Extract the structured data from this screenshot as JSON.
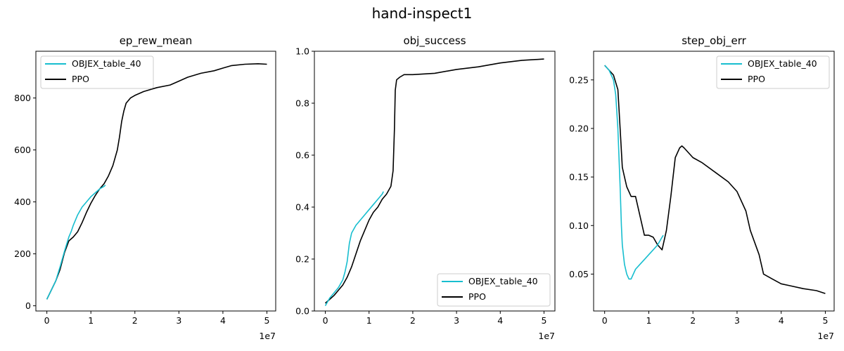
{
  "figure": {
    "title": "hand-inspect1",
    "x_multiplier": "1e7",
    "colors": {
      "OBJEX_table_40": "#17becf",
      "PPO": "#000000"
    }
  },
  "chart_data": [
    {
      "type": "line",
      "title": "ep_rew_mean",
      "xlabel": "",
      "ylabel": "",
      "x_exponent": "1e7",
      "xlim": [
        -0.25,
        5.2
      ],
      "ylim": [
        -20,
        980
      ],
      "xticks": [
        0,
        1,
        2,
        3,
        4,
        5
      ],
      "yticks": [
        0,
        200,
        400,
        600,
        800
      ],
      "grid": false,
      "legend": "upper left",
      "series": [
        {
          "name": "OBJEX_table_40",
          "color": "#17becf",
          "x": [
            0,
            0.1,
            0.2,
            0.3,
            0.4,
            0.5,
            0.55,
            0.6,
            0.7,
            0.8,
            0.9,
            1.0,
            1.1,
            1.2,
            1.3,
            1.33
          ],
          "y": [
            25,
            60,
            95,
            150,
            210,
            265,
            285,
            310,
            350,
            380,
            400,
            420,
            435,
            450,
            460,
            465
          ]
        },
        {
          "name": "PPO",
          "color": "#000000",
          "x": [
            0,
            0.1,
            0.2,
            0.3,
            0.4,
            0.5,
            0.6,
            0.7,
            0.8,
            0.9,
            1.0,
            1.1,
            1.2,
            1.3,
            1.4,
            1.5,
            1.6,
            1.65,
            1.7,
            1.75,
            1.8,
            1.9,
            2.0,
            2.2,
            2.5,
            2.8,
            3.0,
            3.2,
            3.5,
            3.8,
            4.0,
            4.2,
            4.5,
            4.8,
            5.0
          ],
          "y": [
            25,
            60,
            95,
            140,
            205,
            250,
            265,
            285,
            320,
            360,
            395,
            425,
            450,
            470,
            500,
            540,
            600,
            650,
            710,
            750,
            780,
            800,
            810,
            825,
            840,
            850,
            865,
            880,
            895,
            905,
            915,
            925,
            930,
            932,
            930
          ]
        }
      ]
    },
    {
      "type": "line",
      "title": "obj_success",
      "xlabel": "",
      "ylabel": "",
      "x_exponent": "1e7",
      "xlim": [
        -0.25,
        5.25
      ],
      "ylim": [
        0,
        1.0
      ],
      "xticks": [
        0,
        1,
        2,
        3,
        4,
        5
      ],
      "yticks": [
        0.0,
        0.2,
        0.4,
        0.6,
        0.8,
        1.0
      ],
      "grid": false,
      "legend": "lower right",
      "series": [
        {
          "name": "OBJEX_table_40",
          "color": "#17becf",
          "x": [
            0,
            0.1,
            0.2,
            0.3,
            0.4,
            0.45,
            0.5,
            0.55,
            0.6,
            0.7,
            0.8,
            0.9,
            1.0,
            1.1,
            1.2,
            1.3,
            1.33
          ],
          "y": [
            0.02,
            0.05,
            0.07,
            0.09,
            0.12,
            0.15,
            0.19,
            0.26,
            0.3,
            0.33,
            0.35,
            0.37,
            0.39,
            0.41,
            0.43,
            0.45,
            0.46
          ]
        },
        {
          "name": "PPO",
          "color": "#000000",
          "x": [
            0,
            0.1,
            0.2,
            0.3,
            0.4,
            0.5,
            0.6,
            0.7,
            0.8,
            0.9,
            1.0,
            1.1,
            1.2,
            1.3,
            1.4,
            1.5,
            1.55,
            1.58,
            1.6,
            1.63,
            1.7,
            1.8,
            2.0,
            2.5,
            3.0,
            3.5,
            4.0,
            4.5,
            5.0
          ],
          "y": [
            0.03,
            0.045,
            0.06,
            0.08,
            0.1,
            0.13,
            0.17,
            0.22,
            0.27,
            0.31,
            0.35,
            0.38,
            0.4,
            0.43,
            0.45,
            0.48,
            0.54,
            0.7,
            0.85,
            0.89,
            0.9,
            0.91,
            0.91,
            0.915,
            0.93,
            0.94,
            0.955,
            0.965,
            0.97
          ]
        }
      ]
    },
    {
      "type": "line",
      "title": "step_obj_err",
      "xlabel": "",
      "ylabel": "",
      "x_exponent": "1e7",
      "xlim": [
        -0.25,
        5.2
      ],
      "ylim": [
        0.012,
        0.2795
      ],
      "xticks": [
        0,
        1,
        2,
        3,
        4,
        5
      ],
      "yticks": [
        0.05,
        0.1,
        0.15,
        0.2,
        0.25
      ],
      "grid": false,
      "legend": "upper right",
      "series": [
        {
          "name": "OBJEX_table_40",
          "color": "#17becf",
          "x": [
            0,
            0.1,
            0.2,
            0.25,
            0.3,
            0.35,
            0.38,
            0.4,
            0.45,
            0.5,
            0.55,
            0.6,
            0.7,
            0.8,
            0.9,
            1.0,
            1.1,
            1.2,
            1.3,
            1.33
          ],
          "y": [
            0.265,
            0.26,
            0.25,
            0.235,
            0.2,
            0.14,
            0.1,
            0.08,
            0.06,
            0.05,
            0.045,
            0.045,
            0.055,
            0.06,
            0.065,
            0.07,
            0.075,
            0.08,
            0.088,
            0.09
          ]
        },
        {
          "name": "PPO",
          "color": "#000000",
          "x": [
            0,
            0.1,
            0.2,
            0.3,
            0.35,
            0.4,
            0.45,
            0.5,
            0.6,
            0.7,
            0.8,
            0.9,
            1.0,
            1.1,
            1.2,
            1.3,
            1.4,
            1.5,
            1.6,
            1.7,
            1.75,
            1.8,
            2.0,
            2.2,
            2.5,
            2.8,
            3.0,
            3.2,
            3.3,
            3.5,
            3.6,
            3.8,
            4.0,
            4.2,
            4.5,
            4.8,
            5.0
          ],
          "y": [
            0.265,
            0.26,
            0.255,
            0.24,
            0.2,
            0.16,
            0.15,
            0.14,
            0.13,
            0.13,
            0.11,
            0.09,
            0.09,
            0.088,
            0.08,
            0.075,
            0.095,
            0.13,
            0.17,
            0.18,
            0.182,
            0.18,
            0.17,
            0.165,
            0.155,
            0.145,
            0.135,
            0.115,
            0.095,
            0.07,
            0.05,
            0.045,
            0.04,
            0.038,
            0.035,
            0.033,
            0.03
          ]
        }
      ]
    }
  ]
}
